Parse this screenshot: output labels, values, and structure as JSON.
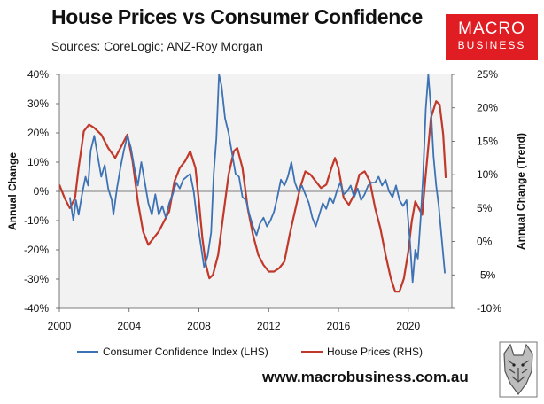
{
  "header": {
    "title": "House Prices vs Consumer Confidence",
    "subtitle": "Sources: CoreLogic; ANZ-Roy Morgan"
  },
  "logo": {
    "line1": "MACRO",
    "line2": "BUSINESS",
    "color": "#e11d24"
  },
  "footer": {
    "url": "www.macrobusiness.com.au"
  },
  "chart_data": {
    "type": "line",
    "title": "House Prices vs Consumer Confidence",
    "xlabel": "",
    "ylabel": "Annual Change",
    "y2label": "Annual Change (Trend)",
    "xlim": [
      2000,
      2022.5
    ],
    "ylim": [
      -40,
      40
    ],
    "y2lim": [
      -10,
      25
    ],
    "x_ticks": [
      2000,
      2004,
      2008,
      2012,
      2016,
      2020
    ],
    "y_ticks": [
      -40,
      -30,
      -20,
      -10,
      0,
      10,
      20,
      30,
      40
    ],
    "y_tick_labels": [
      "-40%",
      "-30%",
      "-20%",
      "-10%",
      "0%",
      "10%",
      "20%",
      "30%",
      "40%"
    ],
    "y2_ticks": [
      -10,
      -5,
      0,
      5,
      10,
      15,
      20,
      25
    ],
    "y2_tick_labels": [
      "-10%",
      "-5%",
      "0%",
      "5%",
      "10%",
      "15%",
      "20%",
      "25%"
    ],
    "legend_position": "bottom",
    "series": [
      {
        "name": "Consumer Confidence Index (LHS)",
        "axis": "left",
        "color": "#3d72b4",
        "points": [
          [
            2000.6,
            -2
          ],
          [
            2000.8,
            -10
          ],
          [
            2000.95,
            -3
          ],
          [
            2001.1,
            -8
          ],
          [
            2001.3,
            -1
          ],
          [
            2001.5,
            5
          ],
          [
            2001.65,
            2
          ],
          [
            2001.8,
            14
          ],
          [
            2002.0,
            19
          ],
          [
            2002.2,
            12
          ],
          [
            2002.4,
            5
          ],
          [
            2002.6,
            9
          ],
          [
            2002.8,
            1
          ],
          [
            2003.0,
            -3
          ],
          [
            2003.1,
            -8
          ],
          [
            2003.3,
            1
          ],
          [
            2003.5,
            8
          ],
          [
            2003.7,
            14
          ],
          [
            2003.9,
            19
          ],
          [
            2004.1,
            15
          ],
          [
            2004.3,
            8
          ],
          [
            2004.5,
            2
          ],
          [
            2004.7,
            10
          ],
          [
            2004.9,
            3
          ],
          [
            2005.1,
            -4
          ],
          [
            2005.3,
            -8
          ],
          [
            2005.5,
            -1
          ],
          [
            2005.7,
            -8
          ],
          [
            2005.9,
            -5
          ],
          [
            2006.1,
            -9
          ],
          [
            2006.3,
            -4
          ],
          [
            2006.5,
            -1
          ],
          [
            2006.7,
            3
          ],
          [
            2006.9,
            1
          ],
          [
            2007.1,
            4
          ],
          [
            2007.3,
            5
          ],
          [
            2007.5,
            6
          ],
          [
            2007.7,
            0
          ],
          [
            2007.9,
            -10
          ],
          [
            2008.1,
            -18
          ],
          [
            2008.3,
            -26
          ],
          [
            2008.5,
            -22
          ],
          [
            2008.7,
            -14
          ],
          [
            2008.85,
            6
          ],
          [
            2009.0,
            18
          ],
          [
            2009.15,
            40
          ],
          [
            2009.3,
            36
          ],
          [
            2009.5,
            25
          ],
          [
            2009.7,
            20
          ],
          [
            2009.9,
            13
          ],
          [
            2010.1,
            6
          ],
          [
            2010.3,
            5
          ],
          [
            2010.5,
            -2
          ],
          [
            2010.7,
            -3
          ],
          [
            2010.9,
            -8
          ],
          [
            2011.1,
            -12
          ],
          [
            2011.3,
            -15
          ],
          [
            2011.5,
            -11
          ],
          [
            2011.7,
            -9
          ],
          [
            2011.9,
            -12
          ],
          [
            2012.1,
            -10
          ],
          [
            2012.3,
            -7
          ],
          [
            2012.5,
            -2
          ],
          [
            2012.7,
            4
          ],
          [
            2012.9,
            2
          ],
          [
            2013.1,
            5
          ],
          [
            2013.3,
            10
          ],
          [
            2013.5,
            3
          ],
          [
            2013.7,
            0
          ],
          [
            2013.9,
            2
          ],
          [
            2014.1,
            -1
          ],
          [
            2014.3,
            -4
          ],
          [
            2014.5,
            -9
          ],
          [
            2014.7,
            -12
          ],
          [
            2014.9,
            -8
          ],
          [
            2015.1,
            -4
          ],
          [
            2015.3,
            -6
          ],
          [
            2015.5,
            -2
          ],
          [
            2015.7,
            -4
          ],
          [
            2015.9,
            0
          ],
          [
            2016.1,
            3
          ],
          [
            2016.3,
            -1
          ],
          [
            2016.5,
            0
          ],
          [
            2016.7,
            2
          ],
          [
            2016.9,
            -2
          ],
          [
            2017.1,
            1
          ],
          [
            2017.3,
            -3
          ],
          [
            2017.5,
            -1
          ],
          [
            2017.7,
            2
          ],
          [
            2017.9,
            3
          ],
          [
            2018.1,
            3
          ],
          [
            2018.3,
            5
          ],
          [
            2018.5,
            2
          ],
          [
            2018.7,
            4
          ],
          [
            2018.9,
            0
          ],
          [
            2019.1,
            -2
          ],
          [
            2019.3,
            2
          ],
          [
            2019.5,
            -3
          ],
          [
            2019.7,
            -5
          ],
          [
            2019.9,
            -3
          ],
          [
            2020.1,
            -17
          ],
          [
            2020.25,
            -31
          ],
          [
            2020.4,
            -20
          ],
          [
            2020.55,
            -23
          ],
          [
            2020.7,
            -10
          ],
          [
            2020.85,
            5
          ],
          [
            2021.0,
            28
          ],
          [
            2021.15,
            40
          ],
          [
            2021.3,
            28
          ],
          [
            2021.45,
            12
          ],
          [
            2021.6,
            2
          ],
          [
            2021.75,
            -5
          ],
          [
            2021.9,
            -15
          ],
          [
            2022.1,
            -28
          ]
        ]
      },
      {
        "name": "House Prices (RHS)",
        "axis": "right",
        "color": "#c0392b",
        "points": [
          [
            2000.0,
            8.5
          ],
          [
            2000.3,
            6.5
          ],
          [
            2000.6,
            5.0
          ],
          [
            2000.9,
            6.5
          ],
          [
            2001.1,
            11.0
          ],
          [
            2001.4,
            16.5
          ],
          [
            2001.7,
            17.5
          ],
          [
            2002.0,
            17.0
          ],
          [
            2002.4,
            16.0
          ],
          [
            2002.8,
            14.0
          ],
          [
            2003.2,
            12.5
          ],
          [
            2003.6,
            14.5
          ],
          [
            2003.9,
            16.0
          ],
          [
            2004.2,
            12.0
          ],
          [
            2004.5,
            6.0
          ],
          [
            2004.8,
            1.5
          ],
          [
            2005.1,
            -0.5
          ],
          [
            2005.4,
            0.5
          ],
          [
            2005.7,
            1.5
          ],
          [
            2006.0,
            3.0
          ],
          [
            2006.3,
            4.5
          ],
          [
            2006.6,
            9.0
          ],
          [
            2006.9,
            11.0
          ],
          [
            2007.2,
            12.0
          ],
          [
            2007.5,
            13.5
          ],
          [
            2007.8,
            11.0
          ],
          [
            2008.0,
            6.0
          ],
          [
            2008.2,
            0.5
          ],
          [
            2008.4,
            -3.5
          ],
          [
            2008.6,
            -5.5
          ],
          [
            2008.8,
            -5.0
          ],
          [
            2009.1,
            -2.0
          ],
          [
            2009.4,
            4.0
          ],
          [
            2009.7,
            10.0
          ],
          [
            2010.0,
            13.5
          ],
          [
            2010.2,
            14.0
          ],
          [
            2010.5,
            11.0
          ],
          [
            2010.8,
            5.0
          ],
          [
            2011.1,
            1.0
          ],
          [
            2011.4,
            -2.0
          ],
          [
            2011.7,
            -3.5
          ],
          [
            2012.0,
            -4.5
          ],
          [
            2012.3,
            -4.5
          ],
          [
            2012.6,
            -4.0
          ],
          [
            2012.9,
            -3.0
          ],
          [
            2013.2,
            1.0
          ],
          [
            2013.5,
            4.5
          ],
          [
            2013.8,
            8.0
          ],
          [
            2014.1,
            10.5
          ],
          [
            2014.4,
            10.0
          ],
          [
            2014.7,
            9.0
          ],
          [
            2015.0,
            8.0
          ],
          [
            2015.3,
            8.5
          ],
          [
            2015.6,
            11.0
          ],
          [
            2015.8,
            12.5
          ],
          [
            2016.0,
            11.0
          ],
          [
            2016.3,
            6.5
          ],
          [
            2016.6,
            5.5
          ],
          [
            2016.9,
            7.0
          ],
          [
            2017.2,
            10.0
          ],
          [
            2017.5,
            10.5
          ],
          [
            2017.8,
            9.0
          ],
          [
            2018.1,
            5.0
          ],
          [
            2018.4,
            2.0
          ],
          [
            2018.7,
            -2.0
          ],
          [
            2019.0,
            -5.5
          ],
          [
            2019.25,
            -7.5
          ],
          [
            2019.5,
            -7.5
          ],
          [
            2019.75,
            -5.5
          ],
          [
            2020.0,
            -1.5
          ],
          [
            2020.2,
            3.0
          ],
          [
            2020.4,
            6.0
          ],
          [
            2020.6,
            5.0
          ],
          [
            2020.8,
            4.0
          ],
          [
            2021.0,
            10.0
          ],
          [
            2021.3,
            18.5
          ],
          [
            2021.6,
            21.0
          ],
          [
            2021.8,
            20.5
          ],
          [
            2022.0,
            16.0
          ],
          [
            2022.15,
            9.5
          ]
        ]
      }
    ]
  }
}
